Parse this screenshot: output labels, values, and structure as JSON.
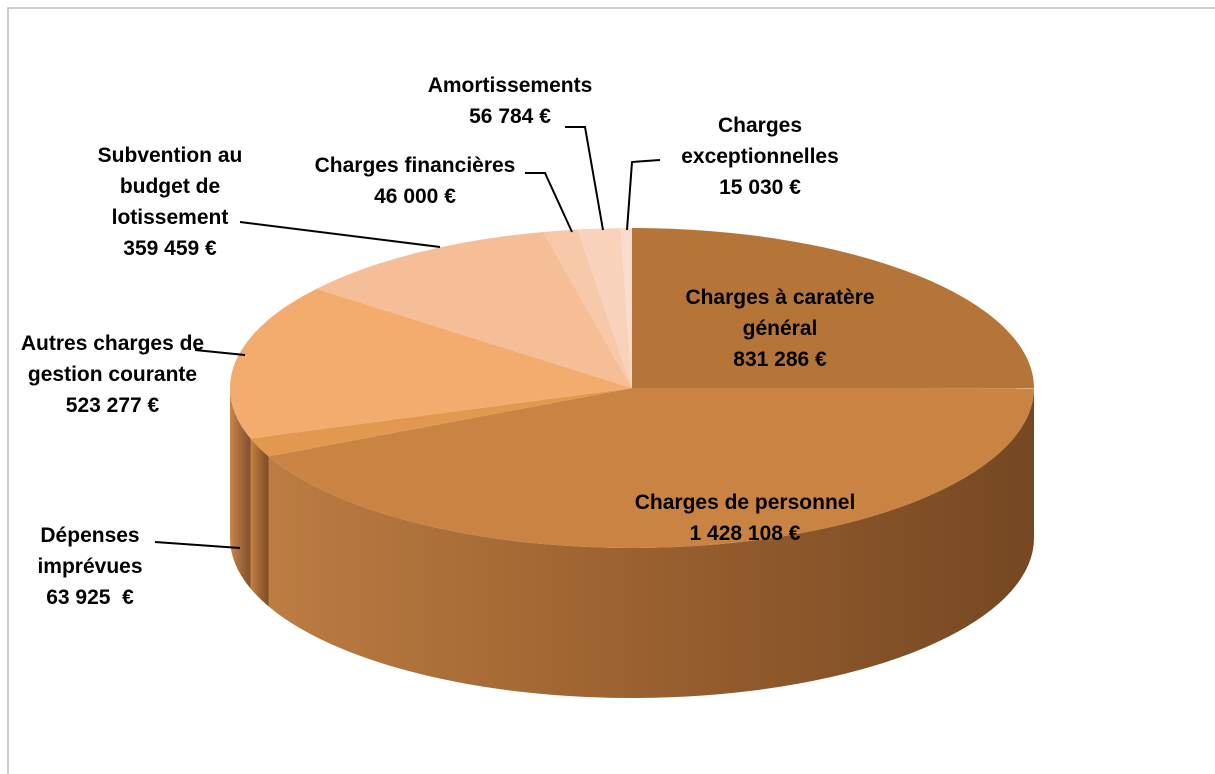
{
  "chart_data": {
    "type": "pie",
    "categories": [
      "Charges à caratère général",
      "Charges de personnel",
      "Dépenses imprévues",
      "Autres charges de gestion courante",
      "Subvention au budget de lotissement",
      "Charges financières",
      "Amortissements",
      "Charges exceptionnelles"
    ],
    "values": [
      831286,
      1428108,
      63925,
      523277,
      359459,
      46000,
      56784,
      15030
    ],
    "value_labels": [
      "831 286 €",
      "1 428 108 €",
      "63 925  €",
      "523 277 €",
      "359 459 €",
      "46 000 €",
      "56 784 €",
      "15 030 €"
    ],
    "colors": [
      "#b67538",
      "#c98443",
      "#e2994f",
      "#f3ac6e",
      "#f6be97",
      "#f7c9a9",
      "#f8d2bb",
      "#f9dccd"
    ]
  }
}
